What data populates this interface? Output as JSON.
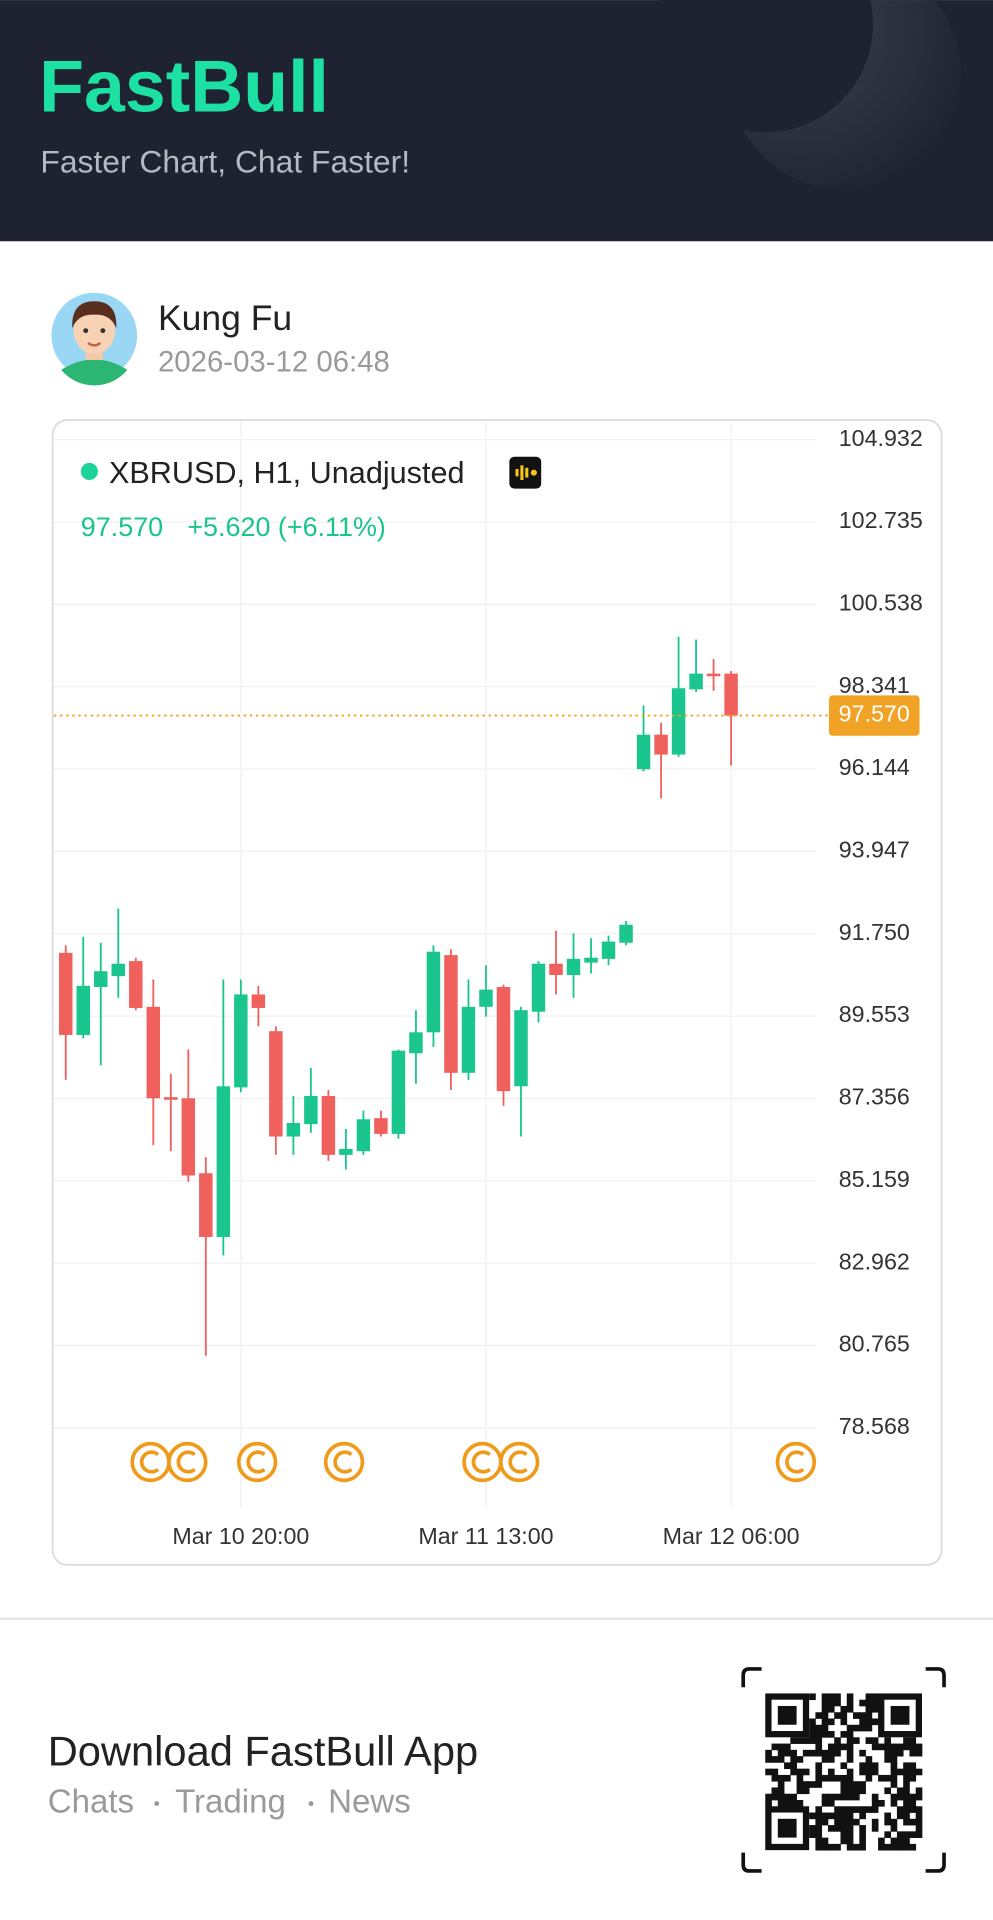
{
  "header": {
    "logo": "FastBull",
    "tagline": "Faster Chart, Chat Faster!"
  },
  "post": {
    "author": "Kung Fu",
    "time": "2026-03-12 06:48"
  },
  "chart_data": {
    "type": "candlestick",
    "title": "XBRUSD, H1, Unadjusted",
    "last": {
      "value": 97.57,
      "label": "97.570"
    },
    "change": "+5.620 (+6.11%)",
    "up_color": "#1bc58e",
    "down_color": "#f0605c",
    "last_color": "#f0a325",
    "grid": true,
    "categories": [
      null,
      null,
      null,
      null,
      null,
      null,
      null,
      null,
      null,
      null,
      "Mar 10 20:00",
      null,
      null,
      null,
      null,
      null,
      null,
      null,
      null,
      null,
      null,
      null,
      null,
      null,
      "Mar 11 13:00",
      null,
      null,
      null,
      null,
      null,
      null,
      null,
      null,
      null,
      null,
      null,
      null,
      null,
      "Mar 12 06:00"
    ],
    "open": [
      91.24,
      89.05,
      90.33,
      90.62,
      91.02,
      89.8,
      87.39,
      87.36,
      85.36,
      83.66,
      87.65,
      90.13,
      89.15,
      86.34,
      86.67,
      87.42,
      85.85,
      85.95,
      86.83,
      86.41,
      88.56,
      89.12,
      91.18,
      88.04,
      89.8,
      90.33,
      87.68,
      89.67,
      90.95,
      90.65,
      90.98,
      91.08,
      91.51,
      96.14,
      97.06,
      96.53,
      98.27,
      98.69,
      98.69
    ],
    "high": [
      91.44,
      91.67,
      91.51,
      92.42,
      91.11,
      90.53,
      88.01,
      88.66,
      85.79,
      90.53,
      90.53,
      90.36,
      89.28,
      87.42,
      88.17,
      87.58,
      86.54,
      87.03,
      87.03,
      88.66,
      89.71,
      91.44,
      91.34,
      90.53,
      90.91,
      90.39,
      89.8,
      91.02,
      91.83,
      91.76,
      91.63,
      91.7,
      92.09,
      97.84,
      97.38,
      99.67,
      99.6,
      99.08,
      98.76
    ],
    "low": [
      87.85,
      88.96,
      88.24,
      90.04,
      89.71,
      86.11,
      85.95,
      85.13,
      80.49,
      83.17,
      87.52,
      89.28,
      85.85,
      85.85,
      86.44,
      85.69,
      85.46,
      85.85,
      86.34,
      86.28,
      87.75,
      88.73,
      87.58,
      87.85,
      89.54,
      87.16,
      86.34,
      89.38,
      90.13,
      90.04,
      90.69,
      90.91,
      91.44,
      96.08,
      95.36,
      96.47,
      98.2,
      98.23,
      96.24
    ],
    "close": [
      89.05,
      90.36,
      90.75,
      90.95,
      89.77,
      87.36,
      87.32,
      85.3,
      83.66,
      87.68,
      90.13,
      89.77,
      86.34,
      86.7,
      87.42,
      85.85,
      86.01,
      86.8,
      86.41,
      88.63,
      89.12,
      91.27,
      88.04,
      89.8,
      90.26,
      87.55,
      89.71,
      90.95,
      90.65,
      91.08,
      91.11,
      91.54,
      91.99,
      97.06,
      96.53,
      98.3,
      98.69,
      98.62,
      97.57
    ],
    "ylim": [
      76.48,
      105.39
    ],
    "yticks": [
      78.568,
      80.765,
      82.962,
      85.159,
      87.356,
      89.553,
      {
        "value": 91.75,
        "label": "91.750"
      },
      93.947,
      96.144,
      98.341,
      100.538,
      102.735,
      104.932
    ]
  },
  "footer": {
    "title": "Download FastBull App",
    "links": [
      "Chats",
      "Trading",
      "News"
    ]
  }
}
